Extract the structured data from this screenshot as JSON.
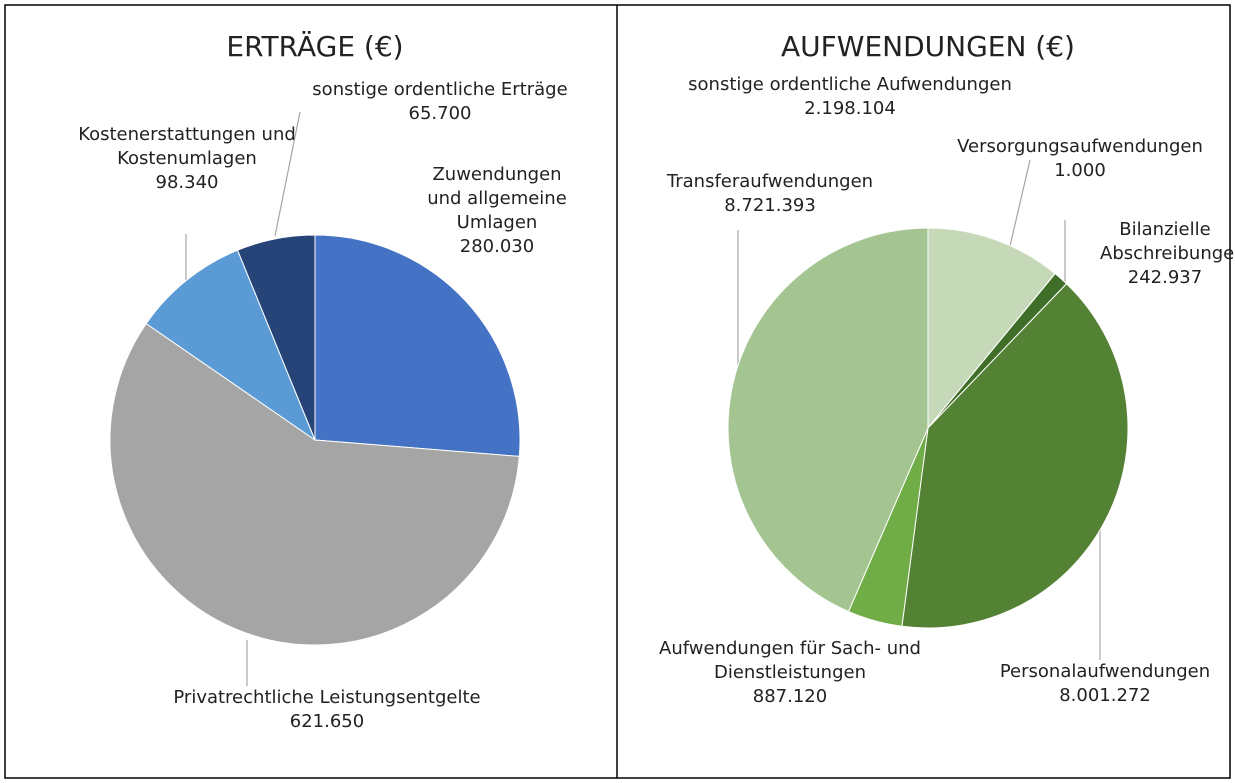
{
  "chart_data": [
    {
      "type": "pie",
      "title": "ERTRÄGE (€)",
      "categories": [
        "Zuwendungen und allgemeine Umlagen",
        "Privatrechtliche Leistungsentgelte",
        "Kostenerstattungen und Kostenumlagen",
        "sonstige ordentliche Erträge"
      ],
      "values": [
        280030,
        621650,
        98340,
        65700
      ],
      "value_labels": [
        "280.030",
        "621.650",
        "98.340",
        "65.700"
      ],
      "colors": [
        "#4472c4",
        "#a5a5a5",
        "#5b9bd5",
        "#264478"
      ]
    },
    {
      "type": "pie",
      "title": "AUFWENDUNGEN (€)",
      "categories": [
        "sonstige ordentliche Aufwendungen",
        "Versorgungsaufwendungen",
        "Bilanzielle Abschreibungen",
        "Personalaufwendungen",
        "Aufwendungen für Sach- und Dienstleistungen",
        "Transferaufwendungen"
      ],
      "values": [
        2198104,
        1000,
        242937,
        8001272,
        887120,
        8721393
      ],
      "value_labels": [
        "2.198.104",
        "1.000",
        "242.937",
        "8.001.272",
        "887.120",
        "8.721.393"
      ],
      "colors": [
        "#c5d9b9",
        "#b5d0a3",
        "#3f6e28",
        "#548235",
        "#70ad47",
        "#a4c591"
      ]
    }
  ]
}
